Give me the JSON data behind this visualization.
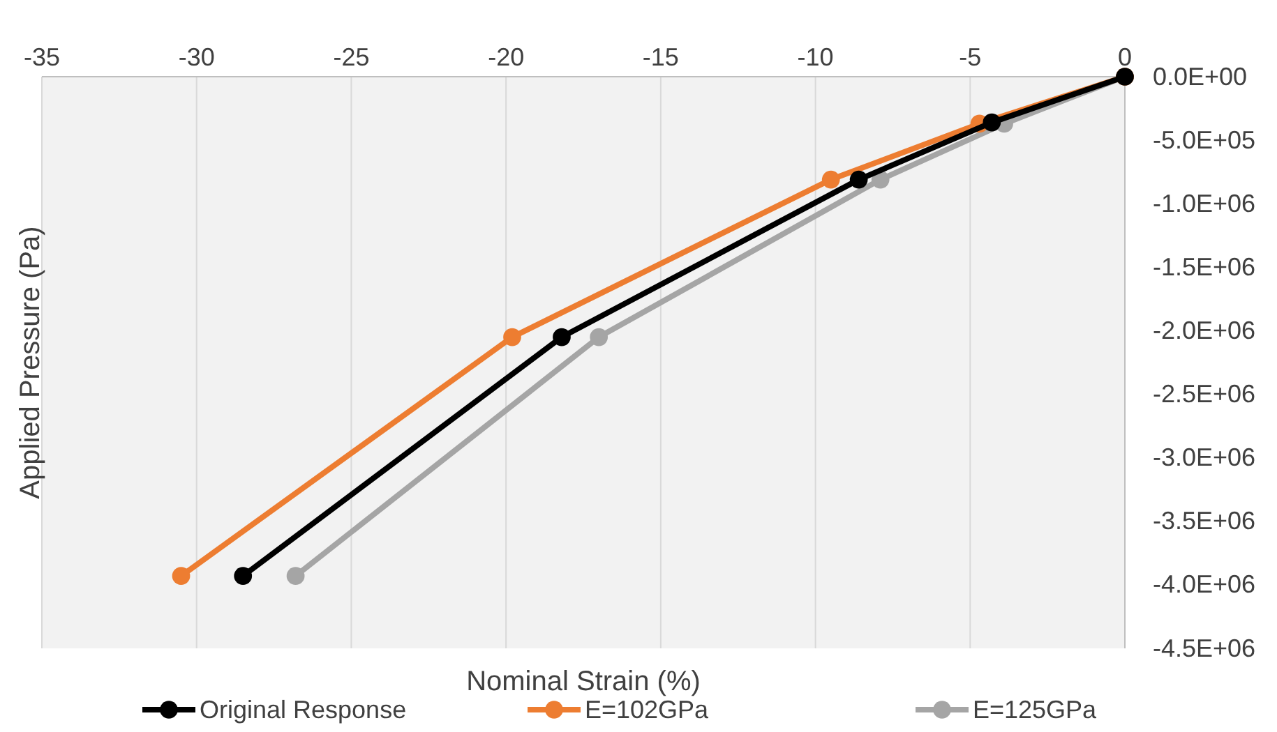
{
  "chart_data": {
    "type": "line",
    "xlabel": "Nominal Strain (%)",
    "ylabel": "Applied Pressure (Pa)",
    "xlim": [
      -35,
      0
    ],
    "xticks": [
      -35,
      -30,
      -25,
      -20,
      -15,
      -10,
      -5,
      0
    ],
    "ylim": [
      -4500000,
      0
    ],
    "yticks": [
      {
        "value": 0,
        "label": "0.0E+00"
      },
      {
        "value": -500000,
        "label": "-5.0E+05"
      },
      {
        "value": -1000000,
        "label": "-1.0E+06"
      },
      {
        "value": -1500000,
        "label": "-1.5E+06"
      },
      {
        "value": -2000000,
        "label": "-2.0E+06"
      },
      {
        "value": -2500000,
        "label": "-2.5E+06"
      },
      {
        "value": -3000000,
        "label": "-3.0E+06"
      },
      {
        "value": -3500000,
        "label": "-3.5E+06"
      },
      {
        "value": -4000000,
        "label": "-4.0E+06"
      },
      {
        "value": -4500000,
        "label": "-4.5E+06"
      }
    ],
    "grid": "x",
    "legend": "bottom",
    "marker": "circle",
    "line_style": "solid",
    "series": [
      {
        "name": "Original Response",
        "color": "#000000",
        "x": [
          0,
          -4.3,
          -8.6,
          -18.2,
          -28.5
        ],
        "values": [
          0,
          -360000,
          -810000,
          -2050000,
          -3930000
        ]
      },
      {
        "name": "E=102GPa",
        "color": "#ed7d31",
        "x": [
          0,
          -4.7,
          -9.5,
          -19.8,
          -30.5
        ],
        "values": [
          0,
          -370000,
          -810000,
          -2050000,
          -3930000
        ]
      },
      {
        "name": "E=125GPa",
        "color": "#a5a5a5",
        "x": [
          0,
          -3.9,
          -7.9,
          -17.0,
          -26.8
        ],
        "values": [
          0,
          -370000,
          -810000,
          -2050000,
          -3930000
        ]
      }
    ]
  }
}
